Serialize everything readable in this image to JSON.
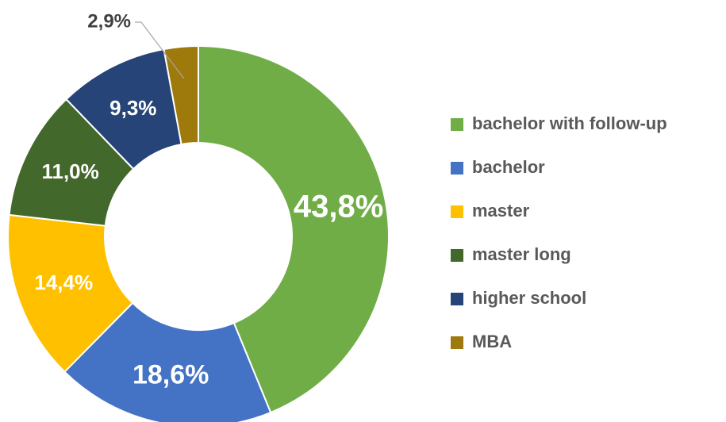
{
  "chart_data": {
    "type": "donut",
    "categories": [
      "bachelor with follow-up",
      "bachelor",
      "master",
      "master long",
      "higher school",
      "MBA"
    ],
    "values": [
      43.8,
      18.6,
      14.4,
      11.0,
      9.3,
      2.9
    ],
    "value_labels": [
      "43,8%",
      "18,6%",
      "14,4%",
      "11,0%",
      "9,3%",
      "2,9%"
    ],
    "colors": [
      "#70ad47",
      "#4472c4",
      "#ffc000",
      "#43682b",
      "#264478",
      "#9e7a0c"
    ],
    "legend": "right"
  }
}
